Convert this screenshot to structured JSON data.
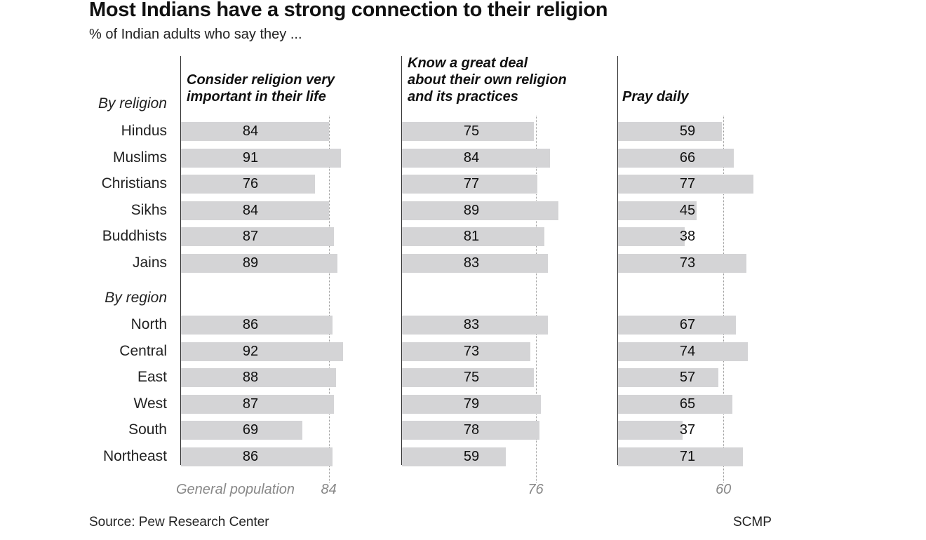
{
  "title": "Most Indians have a strong connection to their religion",
  "subtitle": "% of Indian adults who say they ...",
  "source": "Source: Pew Research Center",
  "credit": "SCMP",
  "general_population_label": "General population",
  "colors": {
    "bar": "#d4d4d6",
    "axis": "#333333",
    "reference": "#9a9a9a"
  },
  "chart_data": {
    "type": "bar",
    "orientation": "horizontal",
    "groups": [
      {
        "label": "By religion",
        "categories": [
          "Hindus",
          "Muslims",
          "Christians",
          "Sikhs",
          "Buddhists",
          "Jains"
        ]
      },
      {
        "label": "By region",
        "categories": [
          "North",
          "Central",
          "East",
          "West",
          "South",
          "Northeast"
        ]
      }
    ],
    "categories": [
      "Hindus",
      "Muslims",
      "Christians",
      "Sikhs",
      "Buddhists",
      "Jains",
      "North",
      "Central",
      "East",
      "West",
      "South",
      "Northeast"
    ],
    "series": [
      {
        "name": "Consider religion very important in their life",
        "values": [
          84,
          91,
          76,
          84,
          87,
          89,
          86,
          92,
          88,
          87,
          69,
          86
        ],
        "general_population": 84
      },
      {
        "name": "Know a great deal about their own religion and its practices",
        "values": [
          75,
          84,
          77,
          89,
          81,
          83,
          83,
          73,
          75,
          79,
          78,
          59
        ],
        "general_population": 76
      },
      {
        "name": "Pray daily",
        "values": [
          59,
          66,
          77,
          45,
          38,
          73,
          67,
          74,
          57,
          65,
          37,
          71
        ],
        "general_population": 60
      }
    ],
    "xlim": [
      0,
      100
    ],
    "grid": false,
    "legend": "none"
  }
}
